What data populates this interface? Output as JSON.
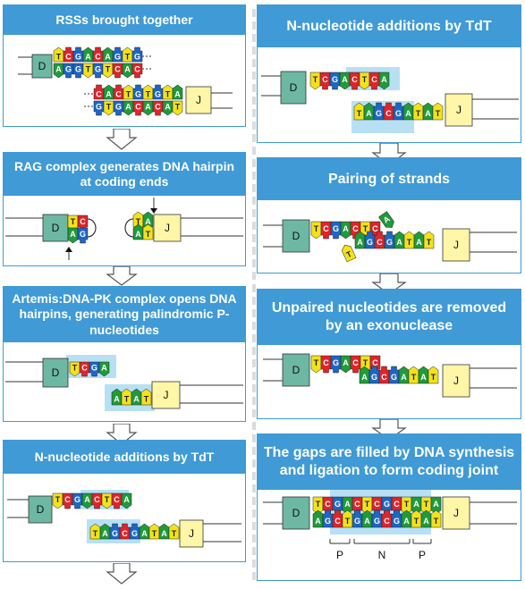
{
  "panels": {
    "rss": {
      "title": "RSSs brought together"
    },
    "rag": {
      "title": "RAG complex generates DNA hairpin at coding ends"
    },
    "artemis": {
      "title": "Artemis:DNA-PK complex opens DNA hairpins, generating palindromic P-nucleotides"
    },
    "tdt_left": {
      "title": "N-nucleotide additions by TdT"
    },
    "tdt_right": {
      "title": "N-nucleotide additions by TdT"
    },
    "pairing": {
      "title": "Pairing of strands"
    },
    "exo": {
      "title": "Unpaired nucleotides are removed by an exonuclease"
    },
    "fill": {
      "title": "The gaps are filled by DNA synthesis and ligation to form coding joint"
    }
  },
  "segments": {
    "d": "D",
    "j": "J"
  },
  "sequences": {
    "rss_d_top": [
      "T",
      "C",
      "G",
      "A",
      "C",
      "A",
      "G",
      "T",
      "G"
    ],
    "rss_d_bottom": [
      "A",
      "G",
      "G",
      "T",
      "G",
      "T",
      "C",
      "A",
      "C"
    ],
    "rss_j_top": [
      "C",
      "A",
      "C",
      "T",
      "G",
      "T",
      "G",
      "T",
      "A"
    ],
    "rss_j_bottom": [
      "G",
      "T",
      "G",
      "A",
      "C",
      "A",
      "C",
      "A",
      "T"
    ],
    "rag_d_top": [
      "T",
      "C"
    ],
    "rag_d_bottom": [
      "A",
      "G"
    ],
    "rag_j_top": [
      "T",
      "A"
    ],
    "rag_j_bottom": [
      "A",
      "T"
    ],
    "artemis_d": [
      "T",
      "C",
      "G",
      "A"
    ],
    "artemis_j": [
      "A",
      "T",
      "A",
      "T"
    ],
    "tdt_d": [
      "T",
      "C",
      "G",
      "A",
      "C",
      "T",
      "C",
      "A"
    ],
    "tdt_j": [
      "T",
      "A",
      "G",
      "C",
      "G",
      "A",
      "T",
      "A",
      "T"
    ],
    "pair_d": [
      "T",
      "C",
      "G",
      "A",
      "C",
      "T",
      "C",
      "A"
    ],
    "pair_j": [
      "T",
      "A",
      "G",
      "C",
      "G",
      "A",
      "T",
      "A",
      "T"
    ],
    "exo_d": [
      "T",
      "C",
      "G",
      "A",
      "C",
      "T",
      "C"
    ],
    "exo_j": [
      "A",
      "G",
      "C",
      "G",
      "A",
      "T",
      "A",
      "T"
    ],
    "fill_top": [
      "T",
      "C",
      "G",
      "A",
      "C",
      "T",
      "C",
      "G",
      "C",
      "T",
      "A",
      "T",
      "A"
    ],
    "fill_bottom": [
      "A",
      "G",
      "C",
      "T",
      "G",
      "A",
      "G",
      "C",
      "G",
      "A",
      "T",
      "A",
      "T"
    ]
  },
  "legend_labels": {
    "p1": "P",
    "n": "N",
    "p2": "P"
  },
  "colors": {
    "header": "#3f9ad6",
    "highlight": "#b7e0f5",
    "d_segment": "#6db8a3",
    "j_segment": "#fff6a8",
    "A": "#1f9b3a",
    "T": "#f2e21a",
    "G": "#1d66c6",
    "C": "#e0242a"
  }
}
